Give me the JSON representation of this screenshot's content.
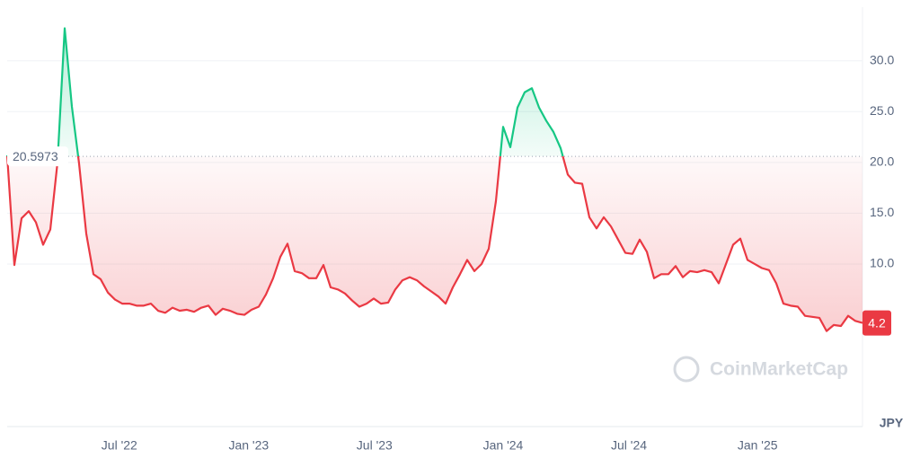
{
  "chart_data": {
    "type": "line",
    "currency": "JPY",
    "watermark": "CoinMarketCap",
    "baseline": 20.5973,
    "color_up": "#16c784",
    "color_down": "#ea3943",
    "values": [
      20.7,
      9.9,
      14.5,
      15.2,
      14.1,
      11.9,
      13.4,
      20.0,
      33.2,
      25.5,
      19.9,
      13.0,
      9.0,
      8.5,
      7.2,
      6.5,
      6.1,
      6.1,
      5.9,
      5.9,
      6.1,
      5.4,
      5.2,
      5.7,
      5.4,
      5.5,
      5.3,
      5.7,
      5.9,
      5.0,
      5.6,
      5.4,
      5.1,
      5.0,
      5.5,
      5.8,
      7.0,
      8.6,
      10.7,
      12.0,
      9.3,
      9.1,
      8.6,
      8.6,
      9.9,
      7.7,
      7.5,
      7.1,
      6.4,
      5.8,
      6.1,
      6.6,
      6.1,
      6.2,
      7.5,
      8.4,
      8.7,
      8.4,
      7.8,
      7.3,
      6.8,
      6.1,
      7.7,
      9.0,
      10.4,
      9.3,
      10.0,
      11.5,
      16.2,
      23.5,
      21.5,
      25.4,
      26.9,
      27.3,
      25.4,
      24.1,
      23.0,
      21.4,
      18.8,
      18.0,
      17.9,
      14.6,
      13.5,
      14.6,
      13.7,
      12.4,
      11.1,
      11.0,
      12.4,
      11.2,
      8.6,
      9.0,
      9.0,
      9.8,
      8.7,
      9.3,
      9.2,
      9.4,
      9.2,
      8.1,
      10.0,
      11.9,
      12.5,
      10.4,
      10.0,
      9.6,
      9.4,
      8.1,
      6.1,
      5.9,
      5.8,
      4.9,
      4.8,
      4.7,
      3.4,
      4.0,
      3.9,
      4.9,
      4.4,
      4.2
    ],
    "xticks": [
      {
        "value": 15.6,
        "label": "Jul '22"
      },
      {
        "value": 33.6,
        "label": "Jan '23"
      },
      {
        "value": 51.1,
        "label": "Jul '23"
      },
      {
        "value": 69,
        "label": "Jan '24"
      },
      {
        "value": 86.5,
        "label": "Jul '24"
      },
      {
        "value": 104.4,
        "label": "Jan '25"
      }
    ],
    "ylim": [
      -6,
      35.1
    ],
    "yticks": [
      {
        "value": 10,
        "label": "10.0"
      },
      {
        "value": 15,
        "label": "15.0"
      },
      {
        "value": 20,
        "label": "20.0"
      },
      {
        "value": 25,
        "label": "25.0"
      },
      {
        "value": 30,
        "label": "30.0"
      }
    ],
    "grid": true
  }
}
